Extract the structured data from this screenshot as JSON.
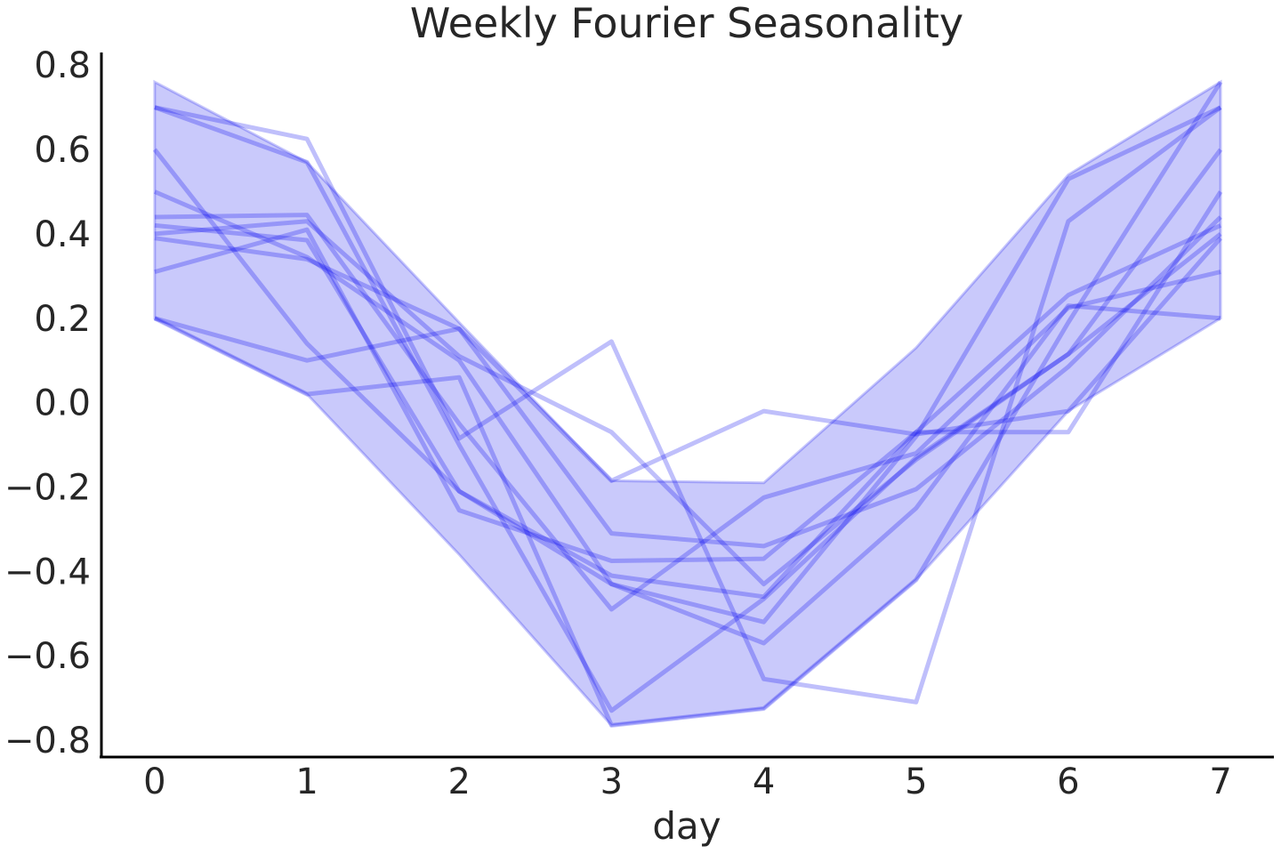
{
  "chart_data": {
    "type": "line",
    "title": "Weekly Fourier Seasonality",
    "xlabel": "day",
    "ylabel": "",
    "x": [
      0,
      1,
      2,
      3,
      4,
      5,
      6,
      7
    ],
    "xlim": [
      -0.35,
      7.35
    ],
    "ylim": [
      -0.84,
      0.83
    ],
    "x_ticks": [
      {
        "value": 0,
        "label": "0"
      },
      {
        "value": 1,
        "label": "1"
      },
      {
        "value": 2,
        "label": "2"
      },
      {
        "value": 3,
        "label": "3"
      },
      {
        "value": 4,
        "label": "4"
      },
      {
        "value": 5,
        "label": "5"
      },
      {
        "value": 6,
        "label": "6"
      },
      {
        "value": 7,
        "label": "7"
      }
    ],
    "y_ticks": [
      {
        "value": 0.8,
        "label": "0.8"
      },
      {
        "value": 0.6,
        "label": "0.6"
      },
      {
        "value": 0.4,
        "label": "0.4"
      },
      {
        "value": 0.2,
        "label": "0.2"
      },
      {
        "value": 0.0,
        "label": "0.0"
      },
      {
        "value": -0.2,
        "label": "−0.2"
      },
      {
        "value": -0.4,
        "label": "−0.4"
      },
      {
        "value": -0.6,
        "label": "−0.6"
      },
      {
        "value": -0.8,
        "label": "−0.8"
      }
    ],
    "grid": false,
    "band": {
      "upper": [
        0.76,
        0.57,
        0.19,
        -0.185,
        -0.19,
        0.13,
        0.54,
        0.76
      ],
      "lower": [
        0.2,
        0.02,
        -0.36,
        -0.765,
        -0.725,
        -0.42,
        -0.02,
        0.2
      ]
    },
    "series": [
      {
        "values": [
          0.7,
          0.625,
          -0.085,
          0.145,
          -0.655,
          -0.71,
          0.43,
          0.7
        ]
      },
      {
        "values": [
          0.6,
          0.14,
          -0.21,
          -0.43,
          -0.57,
          -0.25,
          0.23,
          0.2
        ]
      },
      {
        "values": [
          0.7,
          0.57,
          -0.1,
          -0.73,
          -0.465,
          -0.13,
          0.115,
          0.6
        ]
      },
      {
        "values": [
          0.5,
          0.345,
          0.1,
          -0.43,
          -0.52,
          -0.08,
          0.53,
          0.7
        ]
      },
      {
        "values": [
          0.44,
          0.445,
          -0.05,
          -0.49,
          -0.225,
          -0.12,
          0.225,
          0.31
        ]
      },
      {
        "values": [
          0.42,
          0.385,
          -0.21,
          -0.41,
          -0.46,
          -0.07,
          -0.07,
          0.5
        ]
      },
      {
        "values": [
          0.4,
          0.43,
          0.11,
          -0.07,
          -0.43,
          -0.135,
          0.115,
          0.4
        ]
      },
      {
        "values": [
          0.39,
          0.34,
          0.175,
          -0.31,
          -0.34,
          -0.205,
          0.085,
          0.44
        ]
      },
      {
        "values": [
          0.31,
          0.41,
          -0.255,
          -0.375,
          -0.37,
          -0.07,
          0.255,
          0.42
        ]
      },
      {
        "values": [
          0.2,
          0.1,
          0.175,
          -0.185,
          -0.02,
          -0.075,
          -0.02,
          0.39
        ]
      },
      {
        "values": [
          0.2,
          0.02,
          0.06,
          -0.765,
          -0.725,
          -0.42,
          0.19,
          0.76
        ]
      }
    ]
  }
}
